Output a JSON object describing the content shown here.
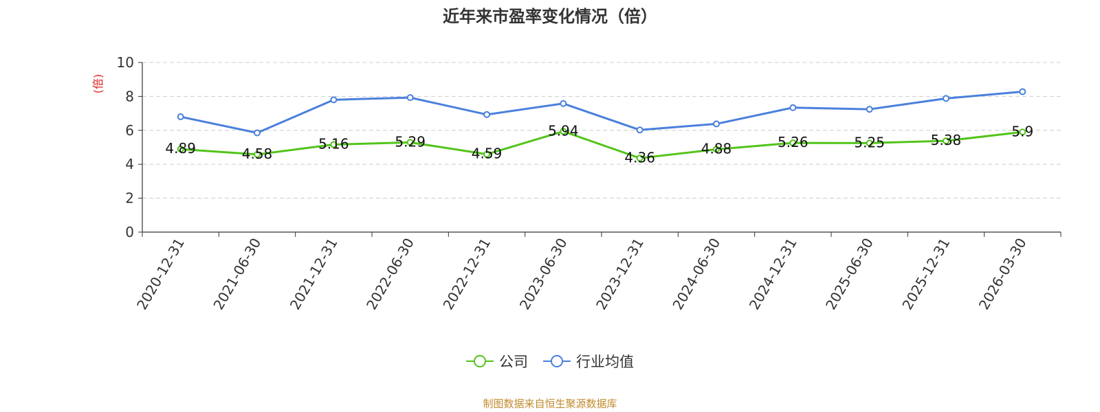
{
  "title": "近年来市盈率变化情况（倍）",
  "footer": "制图数据来自恒生聚源数据库",
  "colors": {
    "company": "#52c41a",
    "industry": "#4a80dc",
    "ylabel": "#e02020",
    "footer": "#c08b2c"
  },
  "legend": {
    "company": "公司",
    "industry": "行业均值"
  },
  "chart_data": {
    "type": "line",
    "title": "近年来市盈率变化情况（倍）",
    "ylabel": "(倍)",
    "xlabel": "",
    "ylim": [
      0,
      10
    ],
    "yticks": [
      0,
      2,
      4,
      6,
      8,
      10
    ],
    "grid": true,
    "legend_position": "bottom",
    "categories": [
      "2020-12-31",
      "2021-06-30",
      "2021-12-31",
      "2022-06-30",
      "2022-12-31",
      "2023-06-30",
      "2023-12-31",
      "2024-06-30",
      "2024-12-31",
      "2025-06-30",
      "2025-12-31",
      "2026-03-30"
    ],
    "series": [
      {
        "name": "公司",
        "values": [
          4.89,
          4.58,
          5.16,
          5.29,
          4.59,
          5.94,
          4.36,
          4.88,
          5.26,
          5.25,
          5.38,
          5.9
        ],
        "labels": true
      },
      {
        "name": "行业均值",
        "values": [
          6.8,
          5.85,
          7.8,
          7.93,
          6.93,
          7.58,
          6.02,
          6.38,
          7.34,
          7.24,
          7.88,
          8.28
        ],
        "labels": false
      }
    ]
  }
}
